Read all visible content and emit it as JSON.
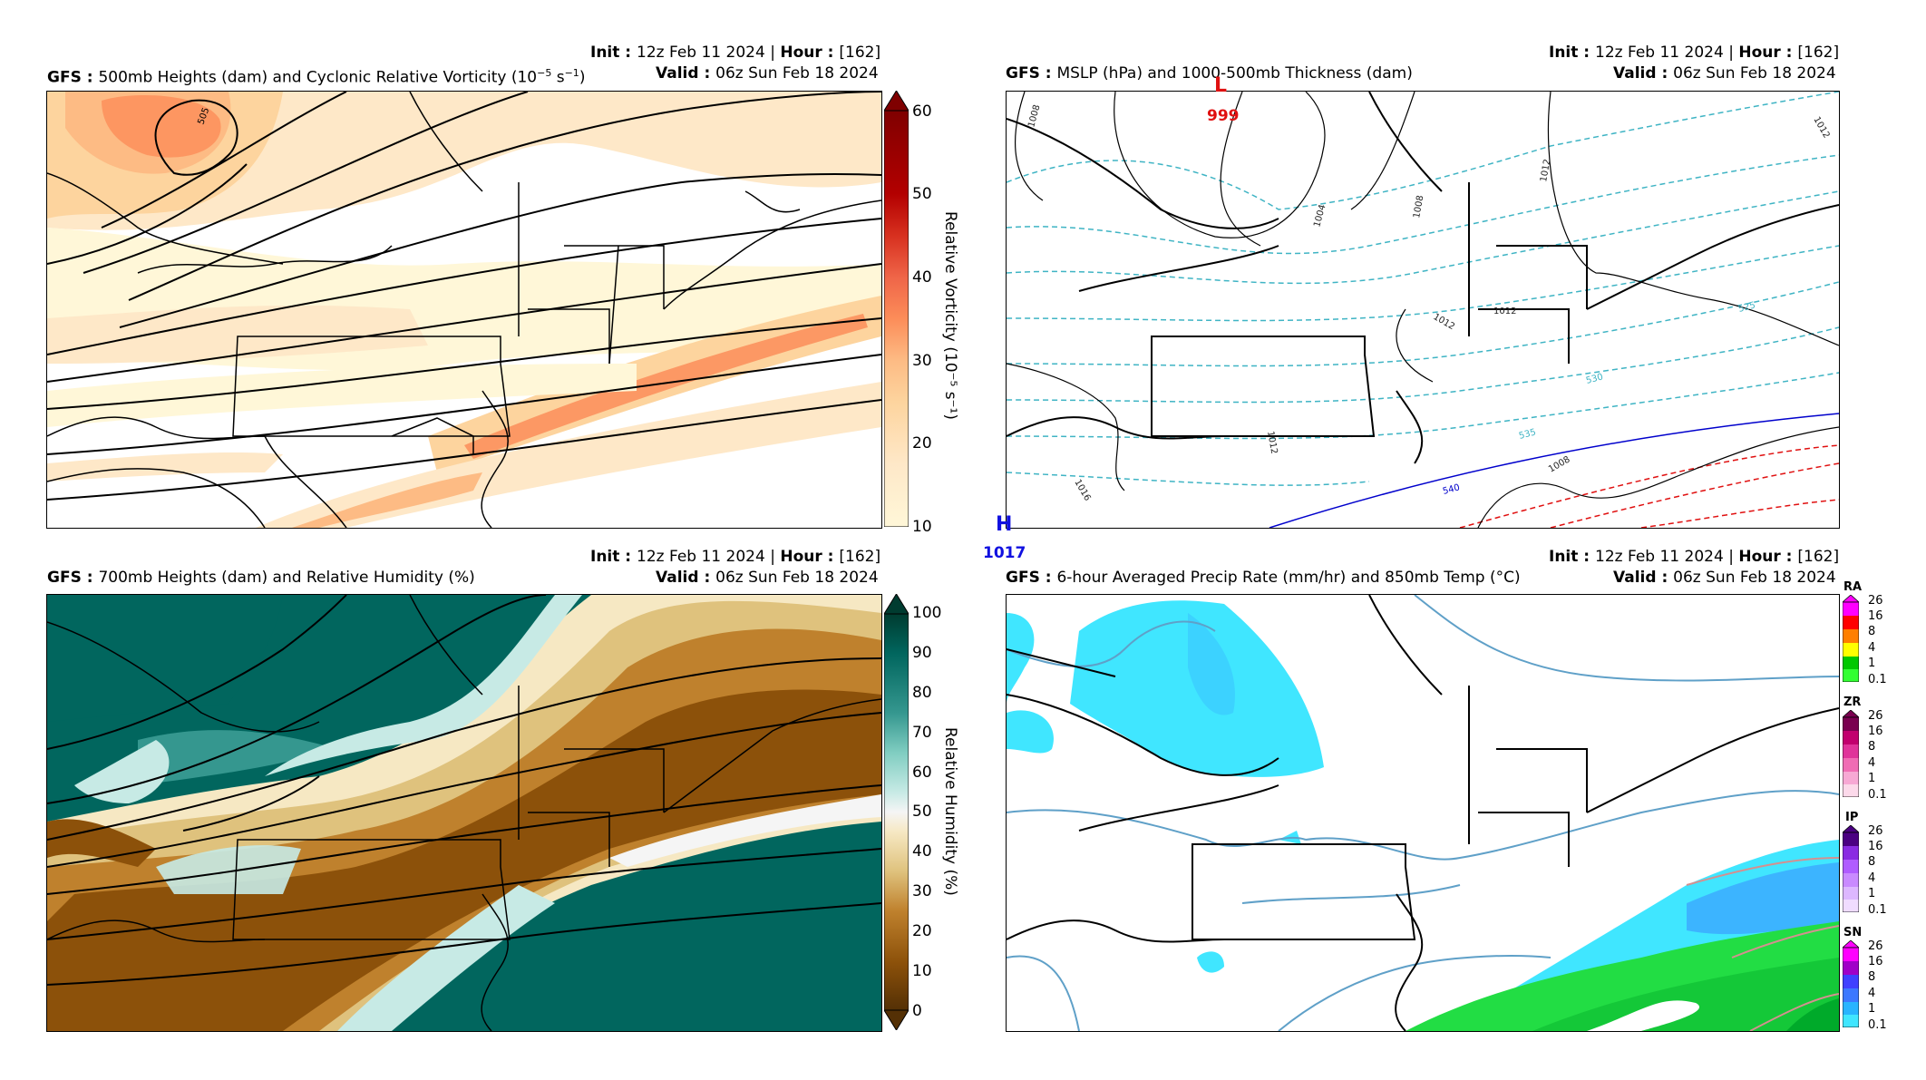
{
  "common": {
    "init_label": "Init",
    "init_value": "12z Feb 11 2024",
    "hour_label": "Hour",
    "hour_value": "[162]",
    "valid_label": "Valid",
    "valid_value": "06z Sun Feb 18 2024",
    "model": "GFS"
  },
  "panels": [
    {
      "title": "500mb Heights (dam) and Cyclonic Relative Vorticity (10",
      "title_sup": "−5",
      "title_end": " s",
      "title_sup2": "−1",
      "title_close": ")",
      "colorbar": {
        "ticks": [
          "60",
          "50",
          "40",
          "30",
          "20",
          "10"
        ],
        "label": "Relative Vorticity (10⁻⁵ s⁻¹)",
        "colors": [
          "#7f0000",
          "#b30000",
          "#d7301f",
          "#ef6548",
          "#fc8d59",
          "#fdbb84",
          "#fdd49e",
          "#fee8c8",
          "#fff7d8"
        ]
      },
      "contour_labels": [
        "505"
      ]
    },
    {
      "title": "MSLP (hPa) and 1000-500mb Thickness (dam)",
      "low_symbol": "L",
      "low_value": "999",
      "high_symbol": "H",
      "high_value": "1017",
      "isobar_labels": [
        "1008",
        "1004",
        "1008",
        "1012",
        "1012",
        "1012",
        "1016",
        "1012",
        "1008",
        "1012"
      ],
      "thickness_labels": [
        "525",
        "530",
        "535",
        "540"
      ]
    },
    {
      "title": "700mb Heights (dam) and Relative Humidity (%)",
      "colorbar": {
        "ticks": [
          "100",
          "90",
          "80",
          "70",
          "60",
          "50",
          "40",
          "30",
          "20",
          "10",
          "0"
        ],
        "label": "Relative Humidity (%)",
        "colors": [
          "#003c30",
          "#01665e",
          "#35978f",
          "#80cdc1",
          "#c7eae5",
          "#f5f5f5",
          "#f6e8c3",
          "#dfc27d",
          "#bf812d",
          "#8c510a",
          "#543005"
        ]
      }
    },
    {
      "title": "6-hour Averaged Precip Rate (mm/hr) and 850mb Temp (°C)",
      "precip_types": [
        {
          "code": "RA",
          "ticks": [
            "26",
            "16",
            "8",
            "4",
            "1",
            "0.1"
          ],
          "colors": [
            "#ff00ff",
            "#ff0000",
            "#ff7f00",
            "#ffff00",
            "#00c800",
            "#32ff32"
          ]
        },
        {
          "code": "ZR",
          "ticks": [
            "26",
            "16",
            "8",
            "4",
            "1",
            "0.1"
          ],
          "colors": [
            "#7a0050",
            "#c2006e",
            "#e0349a",
            "#f06cb4",
            "#f7a8d4",
            "#fcd9ea"
          ]
        },
        {
          "code": "IP",
          "ticks": [
            "26",
            "16",
            "8",
            "4",
            "1",
            "0.1"
          ],
          "colors": [
            "#4b0082",
            "#8a2be2",
            "#b05cff",
            "#c98aff",
            "#ddb7ff",
            "#f0dcff"
          ]
        },
        {
          "code": "SN",
          "ticks": [
            "26",
            "16",
            "8",
            "4",
            "1",
            "0.1"
          ],
          "colors": [
            "#ff00ff",
            "#a000c8",
            "#4040ff",
            "#3c78ff",
            "#28b4ff",
            "#40e6ff"
          ]
        }
      ]
    }
  ]
}
